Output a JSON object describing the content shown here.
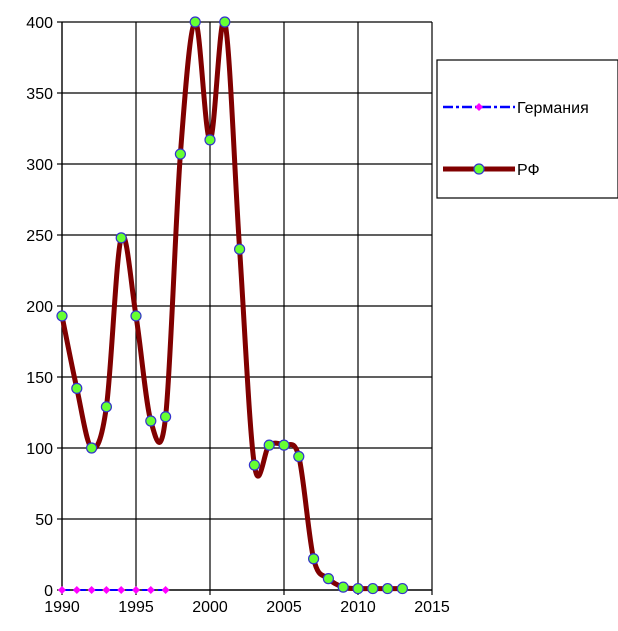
{
  "chart_data": {
    "type": "line",
    "title": "",
    "xlabel": "",
    "ylabel": "",
    "xlim": [
      1990,
      2015
    ],
    "ylim": [
      0,
      400
    ],
    "x_ticks": [
      1990,
      1995,
      2000,
      2005,
      2010,
      2015
    ],
    "y_ticks": [
      0,
      50,
      100,
      150,
      200,
      250,
      300,
      350,
      400
    ],
    "grid": true,
    "legend_position": "right",
    "series": [
      {
        "name": "Германия",
        "color": "#0000ff",
        "marker_color": "#ff00ff",
        "line_style": "dash-dot",
        "marker": "diamond",
        "points": [
          [
            1990,
            0
          ],
          [
            1991,
            0
          ],
          [
            1992,
            0
          ],
          [
            1993,
            0
          ],
          [
            1994,
            0
          ],
          [
            1995,
            0
          ],
          [
            1996,
            0
          ],
          [
            1997,
            0
          ]
        ]
      },
      {
        "name": "РФ",
        "color": "#800000",
        "marker_color": "#66ff33",
        "marker_edge": "#3333cc",
        "line_style": "solid",
        "marker": "circle",
        "points": [
          [
            1990,
            193
          ],
          [
            1991,
            142
          ],
          [
            1992,
            100
          ],
          [
            1993,
            129
          ],
          [
            1994,
            248
          ],
          [
            1995,
            193
          ],
          [
            1996,
            119
          ],
          [
            1997,
            122
          ],
          [
            1998,
            307
          ],
          [
            1999,
            400
          ],
          [
            2000,
            317
          ],
          [
            2001,
            400
          ],
          [
            2002,
            240
          ],
          [
            2003,
            88
          ],
          [
            2004,
            102
          ],
          [
            2005,
            102
          ],
          [
            2006,
            94
          ],
          [
            2007,
            22
          ],
          [
            2008,
            8
          ],
          [
            2009,
            2
          ],
          [
            2010,
            1
          ],
          [
            2011,
            1
          ],
          [
            2012,
            1
          ],
          [
            2013,
            1
          ]
        ]
      }
    ]
  }
}
